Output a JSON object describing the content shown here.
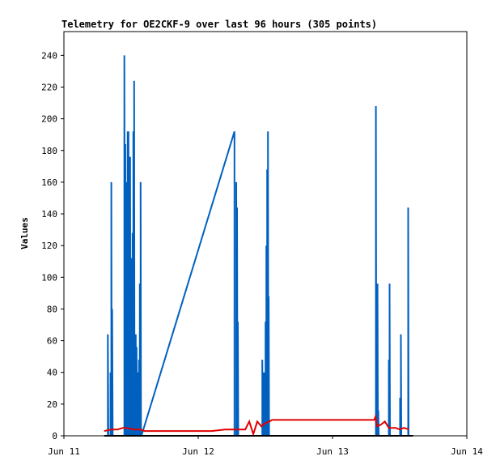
{
  "chart_data": {
    "type": "line",
    "title": "Telemetry for OE2CKF-9 over last 96 hours (305 points)",
    "xlabel": "",
    "ylabel": "Values",
    "x_ticks": [
      "Jun 11",
      "Jun 12",
      "Jun 13",
      "Jun 14"
    ],
    "xlim": [
      0,
      3
    ],
    "y_ticks": [
      0,
      20,
      40,
      60,
      80,
      100,
      120,
      140,
      160,
      180,
      200,
      220,
      240
    ],
    "ylim": [
      0,
      255
    ],
    "grid": false,
    "legend": "none",
    "x_unit": "days since Jun 11",
    "series": [
      {
        "color": "#0060c0",
        "points": [
          [
            0.327,
            0
          ],
          [
            0.327,
            64
          ],
          [
            0.331,
            0
          ],
          [
            0.347,
            0
          ],
          [
            0.347,
            40
          ],
          [
            0.35,
            0
          ],
          [
            0.353,
            0
          ],
          [
            0.353,
            160
          ],
          [
            0.356,
            0
          ],
          [
            0.359,
            0
          ],
          [
            0.359,
            80
          ],
          [
            0.363,
            0
          ],
          [
            0.45,
            0
          ],
          [
            0.45,
            240
          ],
          [
            0.454,
            0
          ],
          [
            0.457,
            0
          ],
          [
            0.457,
            184
          ],
          [
            0.46,
            0
          ],
          [
            0.463,
            0
          ],
          [
            0.463,
            128
          ],
          [
            0.466,
            0
          ],
          [
            0.469,
            0
          ],
          [
            0.469,
            160
          ],
          [
            0.472,
            0
          ],
          [
            0.475,
            0
          ],
          [
            0.475,
            192
          ],
          [
            0.478,
            0
          ],
          [
            0.481,
            0
          ],
          [
            0.481,
            192
          ],
          [
            0.484,
            0
          ],
          [
            0.487,
            0
          ],
          [
            0.487,
            176
          ],
          [
            0.49,
            0
          ],
          [
            0.493,
            0
          ],
          [
            0.493,
            176
          ],
          [
            0.496,
            0
          ],
          [
            0.499,
            0
          ],
          [
            0.499,
            72
          ],
          [
            0.502,
            0
          ],
          [
            0.505,
            0
          ],
          [
            0.505,
            112
          ],
          [
            0.508,
            0
          ],
          [
            0.511,
            0
          ],
          [
            0.511,
            128
          ],
          [
            0.514,
            0
          ],
          [
            0.517,
            0
          ],
          [
            0.517,
            192
          ],
          [
            0.52,
            0
          ],
          [
            0.523,
            0
          ],
          [
            0.523,
            224
          ],
          [
            0.526,
            0
          ],
          [
            0.535,
            0
          ],
          [
            0.535,
            64
          ],
          [
            0.538,
            0
          ],
          [
            0.541,
            0
          ],
          [
            0.541,
            56
          ],
          [
            0.544,
            0
          ],
          [
            0.547,
            0
          ],
          [
            0.547,
            40
          ],
          [
            0.55,
            0
          ],
          [
            0.559,
            0
          ],
          [
            0.559,
            48
          ],
          [
            0.562,
            0
          ],
          [
            0.565,
            0
          ],
          [
            0.565,
            96
          ],
          [
            0.568,
            0
          ],
          [
            0.571,
            0
          ],
          [
            0.571,
            160
          ],
          [
            0.574,
            0
          ],
          [
            0.577,
            0
          ],
          [
            1.27,
            192
          ],
          [
            1.27,
            0
          ],
          [
            1.28,
            0
          ],
          [
            1.283,
            0
          ],
          [
            1.283,
            160
          ],
          [
            1.286,
            0
          ],
          [
            1.289,
            0
          ],
          [
            1.289,
            144
          ],
          [
            1.292,
            0
          ],
          [
            1.295,
            0
          ],
          [
            1.295,
            72
          ],
          [
            1.298,
            0
          ],
          [
            1.477,
            0
          ],
          [
            1.477,
            48
          ],
          [
            1.48,
            0
          ],
          [
            1.489,
            0
          ],
          [
            1.489,
            40
          ],
          [
            1.492,
            0
          ],
          [
            1.501,
            0
          ],
          [
            1.501,
            72
          ],
          [
            1.504,
            0
          ],
          [
            1.507,
            0
          ],
          [
            1.507,
            120
          ],
          [
            1.51,
            0
          ],
          [
            1.513,
            0
          ],
          [
            1.513,
            168
          ],
          [
            1.516,
            0
          ],
          [
            1.519,
            0
          ],
          [
            1.519,
            192
          ],
          [
            1.522,
            0
          ],
          [
            1.525,
            0
          ],
          [
            1.525,
            88
          ],
          [
            1.528,
            0
          ],
          [
            2.323,
            0
          ],
          [
            2.323,
            208
          ],
          [
            2.326,
            0
          ],
          [
            2.329,
            0
          ],
          [
            2.329,
            48
          ],
          [
            2.332,
            0
          ],
          [
            2.335,
            0
          ],
          [
            2.335,
            96
          ],
          [
            2.338,
            0
          ],
          [
            2.341,
            0
          ],
          [
            2.341,
            16
          ],
          [
            2.344,
            0
          ],
          [
            2.419,
            0
          ],
          [
            2.419,
            48
          ],
          [
            2.422,
            0
          ],
          [
            2.425,
            0
          ],
          [
            2.425,
            96
          ],
          [
            2.428,
            0
          ],
          [
            2.503,
            0
          ],
          [
            2.503,
            24
          ],
          [
            2.506,
            0
          ],
          [
            2.509,
            0
          ],
          [
            2.509,
            64
          ],
          [
            2.512,
            0
          ],
          [
            2.563,
            0
          ],
          [
            2.563,
            144
          ],
          [
            2.566,
            0
          ]
        ]
      },
      {
        "color": "#e00000",
        "points": [
          [
            0.3,
            3
          ],
          [
            0.35,
            4
          ],
          [
            0.4,
            4
          ],
          [
            0.44,
            5
          ],
          [
            0.46,
            5
          ],
          [
            0.52,
            4
          ],
          [
            0.57,
            4
          ],
          [
            0.6,
            3
          ],
          [
            0.7,
            3
          ],
          [
            0.8,
            3
          ],
          [
            0.9,
            3
          ],
          [
            1.0,
            3
          ],
          [
            1.1,
            3
          ],
          [
            1.2,
            4
          ],
          [
            1.3,
            4
          ],
          [
            1.35,
            4
          ],
          [
            1.38,
            9
          ],
          [
            1.41,
            1
          ],
          [
            1.44,
            9
          ],
          [
            1.47,
            6
          ],
          [
            1.5,
            8
          ],
          [
            1.53,
            9
          ],
          [
            1.55,
            10
          ],
          [
            1.8,
            10
          ],
          [
            2.1,
            10
          ],
          [
            2.3,
            10
          ],
          [
            2.31,
            10
          ],
          [
            2.32,
            12
          ],
          [
            2.33,
            6
          ],
          [
            2.36,
            7
          ],
          [
            2.39,
            9
          ],
          [
            2.42,
            5
          ],
          [
            2.47,
            5
          ],
          [
            2.5,
            4
          ],
          [
            2.53,
            5
          ],
          [
            2.57,
            4
          ]
        ]
      },
      {
        "color": "#000000",
        "points": [
          [
            0.3,
            0
          ],
          [
            2.6,
            0
          ]
        ]
      }
    ]
  }
}
